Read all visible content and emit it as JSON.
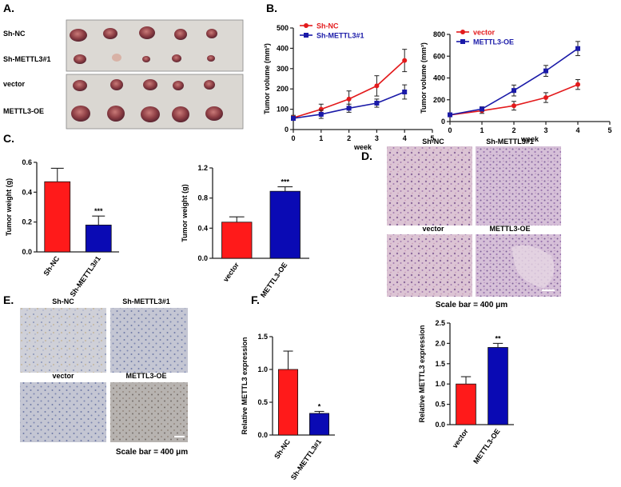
{
  "panels": {
    "A": {
      "label": "A.",
      "group1": [
        "Sh-NC",
        "Sh-METTL3#1"
      ],
      "group2": [
        "vector",
        "METTL3-OE"
      ]
    },
    "B": {
      "label": "B."
    },
    "C": {
      "label": "C."
    },
    "D": {
      "label": "D.",
      "titles": [
        "Sh-NC",
        "Sh-METTL3#1",
        "vector",
        "METTL3-OE"
      ],
      "scale": "Scale bar = 400 μm"
    },
    "E": {
      "label": "E.",
      "titles": [
        "Sh-NC",
        "Sh-METTL3#1",
        "vector",
        "METTL3-OE"
      ],
      "scale": "Scale bar = 400 μm"
    },
    "F": {
      "label": "F."
    }
  },
  "chart_data": [
    {
      "id": "b1",
      "type": "line",
      "ylabel": "Tumor volume (mm³)",
      "xlabel": "week",
      "xlim": [
        0,
        5
      ],
      "ylim": [
        0,
        500
      ],
      "xticks": [
        0,
        1,
        2,
        3,
        4,
        5
      ],
      "yticks": [
        0,
        100,
        200,
        300,
        400,
        500
      ],
      "legend_pos": "top-left",
      "series": [
        {
          "name": "Sh-NC",
          "color": "#e31a1c",
          "marker": "circle",
          "x": [
            0,
            1,
            2,
            3,
            4
          ],
          "y": [
            58,
            100,
            150,
            215,
            340
          ],
          "err": [
            12,
            25,
            40,
            50,
            55
          ]
        },
        {
          "name": "Sh-METTL3#1",
          "color": "#1a1aa8",
          "marker": "square",
          "x": [
            0,
            1,
            2,
            3,
            4
          ],
          "y": [
            55,
            75,
            105,
            130,
            185
          ],
          "err": [
            10,
            20,
            20,
            20,
            35
          ]
        }
      ]
    },
    {
      "id": "b2",
      "type": "line",
      "ylabel": "Tumor volume (mm³)",
      "xlabel": "week",
      "xlim": [
        0,
        5
      ],
      "ylim": [
        0,
        800
      ],
      "xticks": [
        0,
        1,
        2,
        3,
        4,
        5
      ],
      "yticks": [
        0,
        200,
        400,
        600,
        800
      ],
      "legend_pos": "top-left",
      "series": [
        {
          "name": "vector",
          "color": "#e31a1c",
          "marker": "circle",
          "x": [
            0,
            1,
            2,
            3,
            4
          ],
          "y": [
            60,
            100,
            145,
            220,
            340
          ],
          "err": [
            10,
            25,
            40,
            45,
            45
          ]
        },
        {
          "name": "METTL3-OE",
          "color": "#1a1aa8",
          "marker": "square",
          "x": [
            0,
            1,
            2,
            3,
            4
          ],
          "y": [
            62,
            115,
            285,
            465,
            670
          ],
          "err": [
            10,
            20,
            50,
            50,
            65
          ]
        }
      ]
    },
    {
      "id": "c1",
      "type": "bar",
      "ylabel": "Tumor weight (g)",
      "ylim": [
        0,
        0.6
      ],
      "yticks": [
        0.0,
        0.2,
        0.4,
        0.6
      ],
      "ytick_labels": [
        "0.0",
        "0.2",
        "0.4",
        "0.6"
      ],
      "categories": [
        "Sh-NC",
        "Sh-METTL3#1"
      ],
      "values": [
        0.47,
        0.18
      ],
      "err": [
        0.09,
        0.06
      ],
      "colors": [
        "#ff1a1a",
        "#0a0ab4"
      ],
      "annotations": [
        "",
        "***"
      ]
    },
    {
      "id": "c2",
      "type": "bar",
      "ylabel": "Tumor weight (g)",
      "ylim": [
        0,
        1.2
      ],
      "yticks": [
        0.0,
        0.4,
        0.8,
        1.2
      ],
      "ytick_labels": [
        "0.0",
        "0.4",
        "0.8",
        "1.2"
      ],
      "categories": [
        "vector",
        "METTL3-OE"
      ],
      "values": [
        0.48,
        0.89
      ],
      "err": [
        0.07,
        0.06
      ],
      "colors": [
        "#ff1a1a",
        "#0a0ab4"
      ],
      "annotations": [
        "",
        "***"
      ]
    },
    {
      "id": "f1",
      "type": "bar",
      "ylabel": "Relative METTL3 expression",
      "ylim": [
        0,
        1.5
      ],
      "yticks": [
        0.0,
        0.5,
        1.0,
        1.5
      ],
      "ytick_labels": [
        "0.0",
        "0.5",
        "1.0",
        "1.5"
      ],
      "categories": [
        "Sh-NC",
        "Sh-METTL3#1"
      ],
      "values": [
        1.0,
        0.33
      ],
      "err": [
        0.28,
        0.03
      ],
      "colors": [
        "#ff1a1a",
        "#0a0ab4"
      ],
      "annotations": [
        "",
        "*"
      ]
    },
    {
      "id": "f2",
      "type": "bar",
      "ylabel": "Relative METTL3 expression",
      "ylim": [
        0,
        2.5
      ],
      "yticks": [
        0.0,
        0.5,
        1.0,
        1.5,
        2.0,
        2.5
      ],
      "ytick_labels": [
        "0.0",
        "0.5",
        "1.0",
        "1.5",
        "2.0",
        "2.5"
      ],
      "categories": [
        "vector",
        "METTL3-OE"
      ],
      "values": [
        1.0,
        1.9
      ],
      "err": [
        0.18,
        0.1
      ],
      "colors": [
        "#ff1a1a",
        "#0a0ab4"
      ],
      "annotations": [
        "",
        "**"
      ]
    }
  ]
}
